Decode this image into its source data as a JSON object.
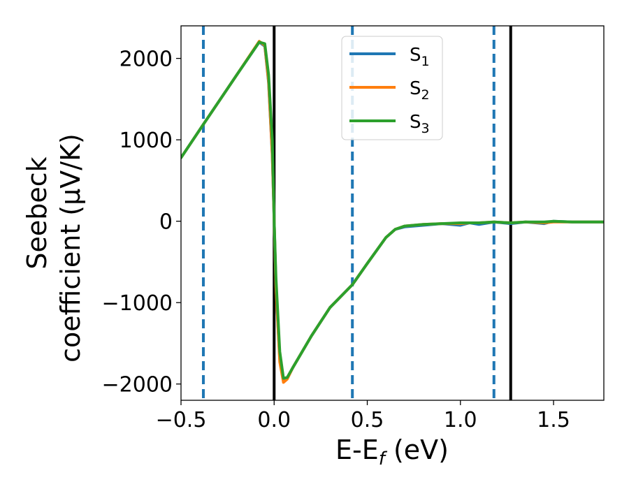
{
  "chart_data": {
    "type": "line",
    "xlabel": "E-E",
    "xlabel_sub": "f",
    "xlabel_unit": " (eV)",
    "ylabel_line1": "Seebeck",
    "ylabel_line2": "coefficient  (μV/K)",
    "xlim": [
      -0.5,
      1.77
    ],
    "ylim": [
      -2200,
      2400
    ],
    "xticks": [
      -0.5,
      0.0,
      0.5,
      1.0,
      1.5
    ],
    "xtick_labels": [
      "−0.5",
      "0.0",
      "0.5",
      "1.0",
      "1.5"
    ],
    "yticks": [
      2000,
      1000,
      0,
      -1000,
      -2000
    ],
    "ytick_labels": [
      "2000",
      "1000",
      "0",
      "−1000",
      "−2000"
    ],
    "grid": false,
    "legend_position": "top-center",
    "vlines_dashed": {
      "x": [
        -0.38,
        0.42,
        1.18
      ],
      "color": "#1f77b4"
    },
    "vlines_solid": {
      "x": [
        0.0,
        1.27
      ],
      "color": "#000000"
    },
    "series": [
      {
        "name": "S",
        "sub": "1",
        "color": "#1f77b4",
        "x": [
          -0.5,
          -0.38,
          -0.2,
          -0.08,
          -0.05,
          -0.03,
          -0.01,
          0.0,
          0.01,
          0.03,
          0.05,
          0.07,
          0.1,
          0.2,
          0.3,
          0.42,
          0.5,
          0.6,
          0.65,
          0.7,
          0.8,
          0.9,
          1.0,
          1.05,
          1.1,
          1.18,
          1.27,
          1.35,
          1.45,
          1.5,
          1.6,
          1.77
        ],
        "y": [
          780,
          1190,
          1800,
          2200,
          2150,
          1700,
          800,
          0,
          -800,
          -1700,
          -1960,
          -1930,
          -1800,
          -1410,
          -1060,
          -780,
          -520,
          -200,
          -100,
          -70,
          -50,
          -30,
          -50,
          -20,
          -40,
          -10,
          -30,
          -10,
          -30,
          0,
          -10,
          -10
        ]
      },
      {
        "name": "S",
        "sub": "2",
        "color": "#ff7f0e",
        "x": [
          -0.5,
          -0.38,
          -0.2,
          -0.08,
          -0.05,
          -0.03,
          -0.01,
          0.0,
          0.01,
          0.03,
          0.05,
          0.07,
          0.1,
          0.2,
          0.3,
          0.42,
          0.5,
          0.6,
          0.65,
          0.7,
          0.8,
          0.9,
          1.0,
          1.05,
          1.1,
          1.18,
          1.27,
          1.35,
          1.45,
          1.5,
          1.6,
          1.77
        ],
        "y": [
          780,
          1190,
          1800,
          2210,
          2160,
          1720,
          820,
          0,
          -820,
          -1730,
          -1980,
          -1940,
          -1800,
          -1410,
          -1060,
          -780,
          -520,
          -200,
          -100,
          -60,
          -40,
          -30,
          -30,
          -20,
          -20,
          -10,
          -20,
          -10,
          -20,
          -10,
          -10,
          -10
        ]
      },
      {
        "name": "S",
        "sub": "3",
        "color": "#2ca02c",
        "x": [
          -0.5,
          -0.38,
          -0.2,
          -0.08,
          -0.05,
          -0.03,
          -0.01,
          0.0,
          0.01,
          0.03,
          0.05,
          0.07,
          0.1,
          0.2,
          0.3,
          0.42,
          0.5,
          0.6,
          0.65,
          0.7,
          0.8,
          0.9,
          1.0,
          1.05,
          1.1,
          1.18,
          1.27,
          1.35,
          1.45,
          1.5,
          1.6,
          1.77
        ],
        "y": [
          780,
          1190,
          1800,
          2200,
          2180,
          1800,
          1000,
          0,
          -700,
          -1600,
          -1930,
          -1920,
          -1800,
          -1410,
          -1060,
          -780,
          -520,
          -200,
          -100,
          -60,
          -40,
          -30,
          -20,
          -20,
          -20,
          -10,
          -20,
          -10,
          -10,
          0,
          -10,
          -10
        ]
      }
    ]
  }
}
